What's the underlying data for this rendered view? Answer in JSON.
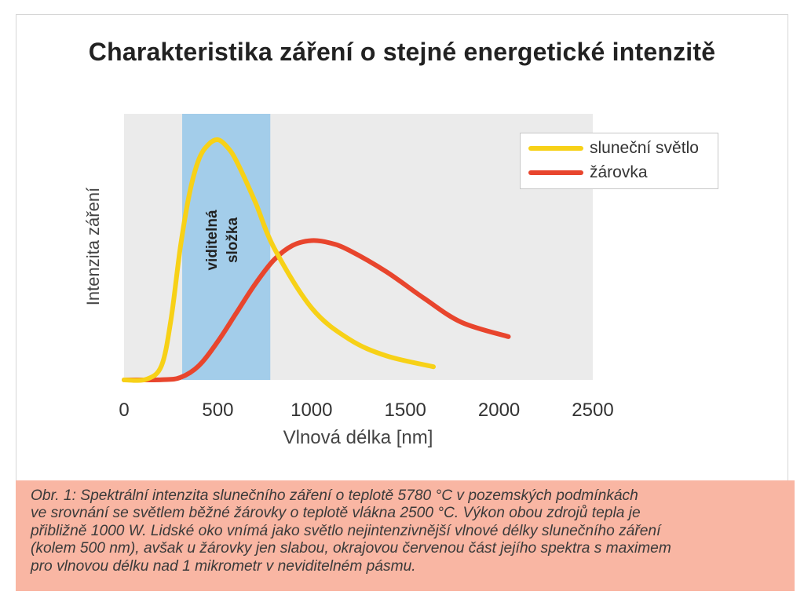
{
  "chart_data": {
    "type": "line",
    "title": "Charakteristika záření o stejné energetické intenzitě",
    "xlabel": "Vlnová délka [nm]",
    "ylabel": "Intenzita záření",
    "xlim": [
      0,
      2500
    ],
    "x_ticks": [
      "0",
      "500",
      "1000",
      "1500",
      "2000",
      "2500"
    ],
    "grid": false,
    "legend_position": "top-right",
    "shaded_region": {
      "label_line1": "viditelná",
      "label_line2": "složka",
      "x_start": 310,
      "x_end": 780,
      "color": "#a3cdea"
    },
    "series": [
      {
        "name": "sluneční světlo",
        "color": "#f7d117",
        "x": [
          0,
          120,
          200,
          250,
          300,
          350,
          400,
          450,
          500,
          550,
          600,
          700,
          800,
          1000,
          1200,
          1400,
          1650
        ],
        "y": [
          0,
          0.3,
          6,
          25,
          55,
          78,
          92,
          98,
          100,
          97,
          91,
          74,
          55,
          30,
          17,
          10,
          5.5
        ]
      },
      {
        "name": "žárovka",
        "color": "#e8452d",
        "x": [
          0,
          200,
          300,
          400,
          500,
          600,
          700,
          800,
          900,
          1000,
          1100,
          1200,
          1400,
          1600,
          1800,
          2050
        ],
        "y": [
          0,
          0.1,
          1,
          6,
          16,
          28,
          40,
          50,
          56,
          58,
          57,
          54,
          45,
          34,
          24,
          18
        ]
      }
    ]
  },
  "caption": [
    "Obr. 1: Spektrální intenzita slunečního záření o teplotě 5780 °C v pozemských podmínkách",
    "ve srovnání se světlem běžné žárovky o teplotě vlákna 2500 °C. Výkon obou zdrojů tepla je",
    "přibližně 1000 W. Lidské oko vnímá jako světlo nejintenzivnější vlnové délky slunečního záření",
    "(kolem 500 nm), avšak u žárovky jen slabou, okrajovou červenou část jejího spektra s maximem",
    "pro vlnovou délku nad 1 mikrometr v neviditelném pásmu."
  ]
}
